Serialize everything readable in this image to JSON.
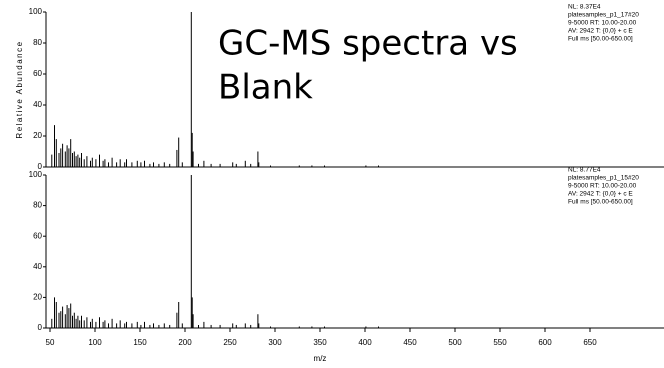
{
  "overlay_text": [
    "GC-MS spectra vs",
    "Blank"
  ],
  "chart_data": [
    {
      "type": "stick",
      "ylabel": "Relative Abundance",
      "info": [
        "NL: 8.37E4",
        "platesamples_p1_17#20",
        "9-5000  RT: 10.00-20.00",
        " AV: 2942 T: {0,0}  + c E",
        "Full ms [50.00-650.00]"
      ],
      "color": "#000000",
      "xlim": [
        50,
        650
      ],
      "ylim": [
        0,
        100
      ],
      "yticks": [
        0,
        20,
        40,
        60,
        80,
        100
      ],
      "x": [
        52,
        55,
        57,
        60,
        62,
        64,
        67,
        69,
        71,
        73,
        75,
        77,
        79,
        81,
        83,
        85,
        88,
        91,
        95,
        97,
        101,
        105,
        109,
        111,
        115,
        119,
        124,
        128,
        133,
        135,
        141,
        147,
        151,
        155,
        161,
        165,
        171,
        177,
        183,
        191,
        193,
        197,
        207,
        208,
        209,
        215,
        221,
        229,
        239,
        253,
        257,
        267,
        273,
        281,
        282,
        295,
        327,
        341,
        355,
        401,
        415
      ],
      "values": [
        8,
        27,
        18,
        9,
        12,
        15,
        10,
        14,
        12,
        18,
        9,
        10,
        7,
        8,
        6,
        9,
        5,
        7,
        4,
        6,
        5,
        8,
        4,
        5,
        3,
        6,
        3,
        5,
        3,
        5,
        3,
        4,
        3,
        4,
        2,
        3,
        2,
        3,
        2,
        11,
        19,
        3,
        100,
        22,
        10,
        2,
        4,
        2,
        2,
        3,
        2,
        4,
        2,
        10,
        3,
        1,
        1,
        1,
        1,
        1,
        1
      ]
    },
    {
      "type": "stick",
      "xlabel": "m/z",
      "info": [
        "NL: 8.77E4",
        "platesamples_p1_15#20",
        "9-5000  RT: 10.00-20.00",
        " AV: 2942 T: {0,0}  + c E",
        "Full ms [50.00-650.00]"
      ],
      "color": "#000000",
      "xlim": [
        50,
        650
      ],
      "ylim": [
        0,
        100
      ],
      "yticks": [
        0,
        20,
        40,
        60,
        80,
        100
      ],
      "xticks": [
        50,
        100,
        150,
        200,
        250,
        300,
        350,
        400,
        450,
        500,
        550,
        600,
        650
      ],
      "x": [
        52,
        55,
        57,
        60,
        62,
        64,
        67,
        69,
        71,
        73,
        75,
        77,
        79,
        81,
        83,
        85,
        88,
        91,
        95,
        97,
        101,
        105,
        109,
        111,
        115,
        119,
        124,
        128,
        133,
        135,
        141,
        147,
        151,
        155,
        161,
        165,
        171,
        177,
        183,
        191,
        193,
        197,
        207,
        208,
        209,
        215,
        221,
        229,
        239,
        253,
        257,
        267,
        273,
        281,
        282,
        295,
        327,
        341,
        355,
        401,
        415
      ],
      "values": [
        6,
        20,
        17,
        10,
        11,
        14,
        9,
        15,
        13,
        16,
        8,
        10,
        6,
        8,
        5,
        8,
        5,
        7,
        4,
        6,
        4,
        7,
        4,
        5,
        3,
        6,
        3,
        5,
        3,
        4,
        3,
        4,
        2,
        4,
        2,
        3,
        2,
        3,
        2,
        10,
        17,
        3,
        100,
        20,
        9,
        2,
        4,
        2,
        2,
        3,
        2,
        3,
        2,
        9,
        3,
        1,
        1,
        1,
        1,
        1,
        1
      ]
    }
  ]
}
